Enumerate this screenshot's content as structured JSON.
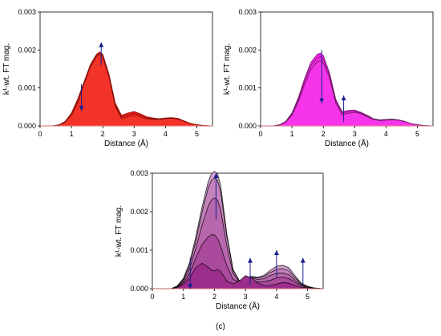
{
  "figure_label": "(c)",
  "chart_data": [
    {
      "type": "area",
      "panel": "a",
      "xlabel": "Distance (Å)",
      "ylabel": "k¹-wt. FT mag.",
      "xlim": [
        0,
        5.5
      ],
      "ylim": [
        0,
        0.003
      ],
      "xticks": [
        0,
        1,
        2,
        3,
        4,
        5
      ],
      "yticks": [
        0.0,
        0.001,
        0.002,
        0.003
      ],
      "ytick_labels": [
        "0.000",
        "0.001",
        "0.002",
        "0.003"
      ],
      "grid": false,
      "fill_color": "#f01c10",
      "line_color": "#7a0d08",
      "x": [
        0,
        0.4,
        0.6,
        0.8,
        1.0,
        1.2,
        1.4,
        1.6,
        1.8,
        1.9,
        2.0,
        2.2,
        2.4,
        2.6,
        2.8,
        3.0,
        3.2,
        3.4,
        3.6,
        3.8,
        4.0,
        4.2,
        4.4,
        4.6,
        4.8,
        5.0,
        5.2,
        5.5
      ],
      "series": [
        {
          "values": [
            0,
            0,
            2e-05,
            0.0001,
            0.00028,
            0.0006,
            0.0011,
            0.00155,
            0.00182,
            0.00188,
            0.00182,
            0.00128,
            0.0005,
            0.00019,
            0.00024,
            0.00028,
            0.00024,
            0.00018,
            0.00017,
            0.00017,
            0.00019,
            0.0002,
            0.00018,
            0.00012,
            6e-05,
            3e-05,
            1e-05,
            0
          ]
        },
        {
          "values": [
            0,
            0,
            2e-05,
            0.00011,
            0.00031,
            0.00065,
            0.00112,
            0.00158,
            0.00186,
            0.00192,
            0.00186,
            0.00132,
            0.00055,
            0.00023,
            0.00029,
            0.00033,
            0.00028,
            0.00021,
            0.00019,
            0.00018,
            0.0002,
            0.00021,
            0.00019,
            0.00013,
            6e-05,
            3e-05,
            1e-05,
            0
          ]
        },
        {
          "values": [
            0,
            0,
            3e-05,
            0.00012,
            0.00034,
            0.00071,
            0.00116,
            0.00161,
            0.00189,
            0.00195,
            0.00189,
            0.00136,
            0.0006,
            0.00028,
            0.00034,
            0.00038,
            0.00032,
            0.00024,
            0.00021,
            0.00019,
            0.00021,
            0.00022,
            0.0002,
            0.00013,
            7e-05,
            3e-05,
            1e-05,
            0
          ]
        }
      ],
      "annotations": [
        {
          "type": "arrow",
          "direction": "up",
          "x": 1.95,
          "y_from": 0.0016,
          "y_to": 0.0022
        },
        {
          "type": "arrow",
          "direction": "down",
          "x": 1.32,
          "y_from": 0.0011,
          "y_to": 0.0004
        }
      ]
    },
    {
      "type": "area",
      "panel": "b",
      "xlabel": "Distance (Å)",
      "ylabel": "k¹-wt. FT mag.",
      "xlim": [
        0,
        5.5
      ],
      "ylim": [
        0,
        0.003
      ],
      "xticks": [
        0,
        1,
        2,
        3,
        4,
        5
      ],
      "yticks": [
        0.0,
        0.001,
        0.002,
        0.003
      ],
      "ytick_labels": [
        "0.000",
        "0.001",
        "0.002",
        "0.003"
      ],
      "grid": false,
      "fill_color": "#f51ee8",
      "line_color": "#5a1450",
      "x": [
        0,
        0.4,
        0.6,
        0.8,
        1.0,
        1.2,
        1.4,
        1.6,
        1.8,
        1.9,
        2.0,
        2.2,
        2.4,
        2.6,
        2.8,
        3.0,
        3.2,
        3.4,
        3.6,
        3.8,
        4.0,
        4.2,
        4.4,
        4.6,
        4.8,
        5.0,
        5.2,
        5.5
      ],
      "series": [
        {
          "values": [
            0,
            0,
            2e-05,
            0.0001,
            0.00028,
            0.00062,
            0.00108,
            0.00148,
            0.00168,
            0.00172,
            0.00166,
            0.00125,
            0.0006,
            0.0003,
            0.00033,
            0.00036,
            0.00032,
            0.00024,
            0.00017,
            0.00014,
            0.00015,
            0.00016,
            0.00015,
            0.00011,
            6e-05,
            3e-05,
            1e-05,
            0
          ]
        },
        {
          "values": [
            0,
            0,
            2e-05,
            0.00011,
            0.00031,
            0.00068,
            0.00116,
            0.00158,
            0.00178,
            0.00182,
            0.00176,
            0.00133,
            0.00065,
            0.00034,
            0.00037,
            0.00039,
            0.00034,
            0.00026,
            0.00018,
            0.00015,
            0.00016,
            0.00017,
            0.00015,
            0.00011,
            6e-05,
            3e-05,
            1e-05,
            0
          ]
        },
        {
          "values": [
            0,
            0,
            3e-05,
            0.00012,
            0.00034,
            0.00074,
            0.00124,
            0.00167,
            0.00188,
            0.00192,
            0.00186,
            0.0014,
            0.0007,
            0.00038,
            0.00041,
            0.00042,
            0.00036,
            0.00028,
            0.00019,
            0.00016,
            0.00017,
            0.00018,
            0.00016,
            0.00012,
            6e-05,
            3e-05,
            1e-05,
            0
          ]
        }
      ],
      "annotations": [
        {
          "type": "arrow",
          "direction": "down",
          "x": 1.95,
          "y_from": 0.002,
          "y_to": 0.0006
        },
        {
          "type": "arrow",
          "direction": "up",
          "x": 2.65,
          "y_from": 0.0001,
          "y_to": 0.0008
        }
      ]
    },
    {
      "type": "area",
      "panel": "c",
      "xlabel": "Distance (Å)",
      "ylabel": "k¹-wt. FT mag.",
      "xlim": [
        0,
        5.5
      ],
      "ylim": [
        0,
        0.003
      ],
      "xticks": [
        0,
        1,
        2,
        3,
        4,
        5
      ],
      "yticks": [
        0.0,
        0.001,
        0.002,
        0.003
      ],
      "ytick_labels": [
        "0.000",
        "0.001",
        "0.002",
        "0.003"
      ],
      "grid": false,
      "fill_color": "#9c2d8c",
      "line_color": "#000000",
      "x": [
        0,
        0.6,
        0.8,
        1.0,
        1.2,
        1.4,
        1.6,
        1.8,
        1.9,
        2.0,
        2.1,
        2.2,
        2.4,
        2.6,
        2.8,
        3.0,
        3.2,
        3.4,
        3.6,
        3.8,
        4.0,
        4.2,
        4.4,
        4.6,
        4.8,
        5.0,
        5.2,
        5.5
      ],
      "series": [
        {
          "values": [
            0,
            0,
            3e-05,
            0.00012,
            0.00028,
            0.00055,
            0.00066,
            0.00056,
            0.00048,
            0.00046,
            0.0005,
            0.00045,
            0.0002,
            0.00012,
            0.0002,
            0.00034,
            0.00028,
            0.00014,
            8e-05,
            8e-05,
            0.00012,
            0.00016,
            0.00014,
            8e-05,
            4e-05,
            2e-05,
            1e-05,
            0
          ]
        },
        {
          "values": [
            0,
            0,
            4e-05,
            0.00016,
            0.0004,
            0.0008,
            0.00115,
            0.00135,
            0.0014,
            0.0014,
            0.0013,
            0.0011,
            0.0006,
            0.00024,
            0.00018,
            0.0002,
            0.00022,
            0.00018,
            0.00018,
            0.00022,
            0.00028,
            0.0003,
            0.00026,
            0.00016,
            8e-05,
            4e-05,
            1e-05,
            0
          ]
        },
        {
          "values": [
            0,
            0,
            5e-05,
            0.0002,
            0.00052,
            0.00105,
            0.00165,
            0.00215,
            0.0023,
            0.00236,
            0.0023,
            0.00205,
            0.0011,
            0.0004,
            0.00018,
            0.00024,
            0.00028,
            0.00024,
            0.00026,
            0.00034,
            0.0004,
            0.00041,
            0.00036,
            0.00022,
            0.0001,
            5e-05,
            1e-05,
            0
          ]
        },
        {
          "values": [
            0,
            0,
            6e-05,
            0.00024,
            0.00062,
            0.00124,
            0.00198,
            0.00262,
            0.00281,
            0.00288,
            0.00281,
            0.00252,
            0.00135,
            0.00048,
            0.0002,
            0.00026,
            0.00031,
            0.00028,
            0.00032,
            0.00042,
            0.0005,
            0.00052,
            0.00046,
            0.00028,
            0.00012,
            6e-05,
            2e-05,
            0
          ]
        },
        {
          "values": [
            0,
            0,
            7e-05,
            0.00027,
            0.00068,
            0.00135,
            0.00212,
            0.00278,
            0.00298,
            0.00305,
            0.00298,
            0.00268,
            0.00142,
            0.0005,
            0.00021,
            0.00027,
            0.00032,
            0.0003,
            0.00035,
            0.00048,
            0.00058,
            0.00061,
            0.00054,
            0.00033,
            0.00014,
            6e-05,
            2e-05,
            0
          ]
        }
      ],
      "annotations": [
        {
          "type": "arrow",
          "direction": "up",
          "x": 2.05,
          "y_from": 0.0018,
          "y_to": 0.003
        },
        {
          "type": "arrow",
          "direction": "up",
          "x": 3.15,
          "y_from": 0.0001,
          "y_to": 0.0008
        },
        {
          "type": "arrow",
          "direction": "up",
          "x": 4.0,
          "y_from": 0.0003,
          "y_to": 0.001
        },
        {
          "type": "arrow",
          "direction": "up",
          "x": 4.85,
          "y_from": 0.0001,
          "y_to": 0.0008
        },
        {
          "type": "arrow",
          "direction": "down",
          "x": 1.22,
          "y_from": 0.0008,
          "y_to": 0.0
        }
      ]
    }
  ]
}
